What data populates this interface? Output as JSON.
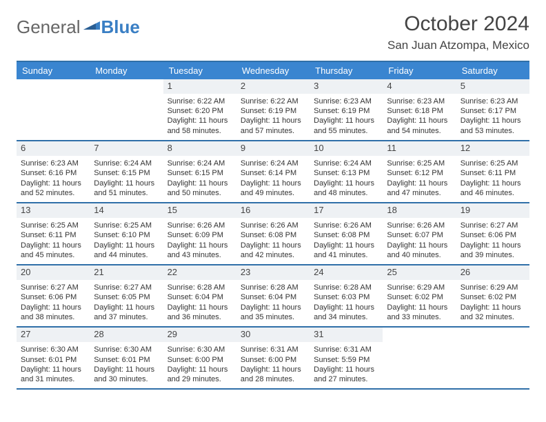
{
  "brand": {
    "part1": "General",
    "part2": "Blue"
  },
  "title": "October 2024",
  "location": "San Juan Atzompa, Mexico",
  "colors": {
    "header_bg": "#3a85d0",
    "rule": "#2f6fa8",
    "daynum_bg": "#eef1f4",
    "text": "#333333",
    "background": "#ffffff"
  },
  "week_days": [
    "Sunday",
    "Monday",
    "Tuesday",
    "Wednesday",
    "Thursday",
    "Friday",
    "Saturday"
  ],
  "weeks": [
    [
      {
        "n": "",
        "sr": "",
        "ss": "",
        "dl": ""
      },
      {
        "n": "",
        "sr": "",
        "ss": "",
        "dl": ""
      },
      {
        "n": "1",
        "sr": "Sunrise: 6:22 AM",
        "ss": "Sunset: 6:20 PM",
        "dl": "Daylight: 11 hours and 58 minutes."
      },
      {
        "n": "2",
        "sr": "Sunrise: 6:22 AM",
        "ss": "Sunset: 6:19 PM",
        "dl": "Daylight: 11 hours and 57 minutes."
      },
      {
        "n": "3",
        "sr": "Sunrise: 6:23 AM",
        "ss": "Sunset: 6:19 PM",
        "dl": "Daylight: 11 hours and 55 minutes."
      },
      {
        "n": "4",
        "sr": "Sunrise: 6:23 AM",
        "ss": "Sunset: 6:18 PM",
        "dl": "Daylight: 11 hours and 54 minutes."
      },
      {
        "n": "5",
        "sr": "Sunrise: 6:23 AM",
        "ss": "Sunset: 6:17 PM",
        "dl": "Daylight: 11 hours and 53 minutes."
      }
    ],
    [
      {
        "n": "6",
        "sr": "Sunrise: 6:23 AM",
        "ss": "Sunset: 6:16 PM",
        "dl": "Daylight: 11 hours and 52 minutes."
      },
      {
        "n": "7",
        "sr": "Sunrise: 6:24 AM",
        "ss": "Sunset: 6:15 PM",
        "dl": "Daylight: 11 hours and 51 minutes."
      },
      {
        "n": "8",
        "sr": "Sunrise: 6:24 AM",
        "ss": "Sunset: 6:15 PM",
        "dl": "Daylight: 11 hours and 50 minutes."
      },
      {
        "n": "9",
        "sr": "Sunrise: 6:24 AM",
        "ss": "Sunset: 6:14 PM",
        "dl": "Daylight: 11 hours and 49 minutes."
      },
      {
        "n": "10",
        "sr": "Sunrise: 6:24 AM",
        "ss": "Sunset: 6:13 PM",
        "dl": "Daylight: 11 hours and 48 minutes."
      },
      {
        "n": "11",
        "sr": "Sunrise: 6:25 AM",
        "ss": "Sunset: 6:12 PM",
        "dl": "Daylight: 11 hours and 47 minutes."
      },
      {
        "n": "12",
        "sr": "Sunrise: 6:25 AM",
        "ss": "Sunset: 6:11 PM",
        "dl": "Daylight: 11 hours and 46 minutes."
      }
    ],
    [
      {
        "n": "13",
        "sr": "Sunrise: 6:25 AM",
        "ss": "Sunset: 6:11 PM",
        "dl": "Daylight: 11 hours and 45 minutes."
      },
      {
        "n": "14",
        "sr": "Sunrise: 6:25 AM",
        "ss": "Sunset: 6:10 PM",
        "dl": "Daylight: 11 hours and 44 minutes."
      },
      {
        "n": "15",
        "sr": "Sunrise: 6:26 AM",
        "ss": "Sunset: 6:09 PM",
        "dl": "Daylight: 11 hours and 43 minutes."
      },
      {
        "n": "16",
        "sr": "Sunrise: 6:26 AM",
        "ss": "Sunset: 6:08 PM",
        "dl": "Daylight: 11 hours and 42 minutes."
      },
      {
        "n": "17",
        "sr": "Sunrise: 6:26 AM",
        "ss": "Sunset: 6:08 PM",
        "dl": "Daylight: 11 hours and 41 minutes."
      },
      {
        "n": "18",
        "sr": "Sunrise: 6:26 AM",
        "ss": "Sunset: 6:07 PM",
        "dl": "Daylight: 11 hours and 40 minutes."
      },
      {
        "n": "19",
        "sr": "Sunrise: 6:27 AM",
        "ss": "Sunset: 6:06 PM",
        "dl": "Daylight: 11 hours and 39 minutes."
      }
    ],
    [
      {
        "n": "20",
        "sr": "Sunrise: 6:27 AM",
        "ss": "Sunset: 6:06 PM",
        "dl": "Daylight: 11 hours and 38 minutes."
      },
      {
        "n": "21",
        "sr": "Sunrise: 6:27 AM",
        "ss": "Sunset: 6:05 PM",
        "dl": "Daylight: 11 hours and 37 minutes."
      },
      {
        "n": "22",
        "sr": "Sunrise: 6:28 AM",
        "ss": "Sunset: 6:04 PM",
        "dl": "Daylight: 11 hours and 36 minutes."
      },
      {
        "n": "23",
        "sr": "Sunrise: 6:28 AM",
        "ss": "Sunset: 6:04 PM",
        "dl": "Daylight: 11 hours and 35 minutes."
      },
      {
        "n": "24",
        "sr": "Sunrise: 6:28 AM",
        "ss": "Sunset: 6:03 PM",
        "dl": "Daylight: 11 hours and 34 minutes."
      },
      {
        "n": "25",
        "sr": "Sunrise: 6:29 AM",
        "ss": "Sunset: 6:02 PM",
        "dl": "Daylight: 11 hours and 33 minutes."
      },
      {
        "n": "26",
        "sr": "Sunrise: 6:29 AM",
        "ss": "Sunset: 6:02 PM",
        "dl": "Daylight: 11 hours and 32 minutes."
      }
    ],
    [
      {
        "n": "27",
        "sr": "Sunrise: 6:30 AM",
        "ss": "Sunset: 6:01 PM",
        "dl": "Daylight: 11 hours and 31 minutes."
      },
      {
        "n": "28",
        "sr": "Sunrise: 6:30 AM",
        "ss": "Sunset: 6:01 PM",
        "dl": "Daylight: 11 hours and 30 minutes."
      },
      {
        "n": "29",
        "sr": "Sunrise: 6:30 AM",
        "ss": "Sunset: 6:00 PM",
        "dl": "Daylight: 11 hours and 29 minutes."
      },
      {
        "n": "30",
        "sr": "Sunrise: 6:31 AM",
        "ss": "Sunset: 6:00 PM",
        "dl": "Daylight: 11 hours and 28 minutes."
      },
      {
        "n": "31",
        "sr": "Sunrise: 6:31 AM",
        "ss": "Sunset: 5:59 PM",
        "dl": "Daylight: 11 hours and 27 minutes."
      },
      {
        "n": "",
        "sr": "",
        "ss": "",
        "dl": ""
      },
      {
        "n": "",
        "sr": "",
        "ss": "",
        "dl": ""
      }
    ]
  ]
}
